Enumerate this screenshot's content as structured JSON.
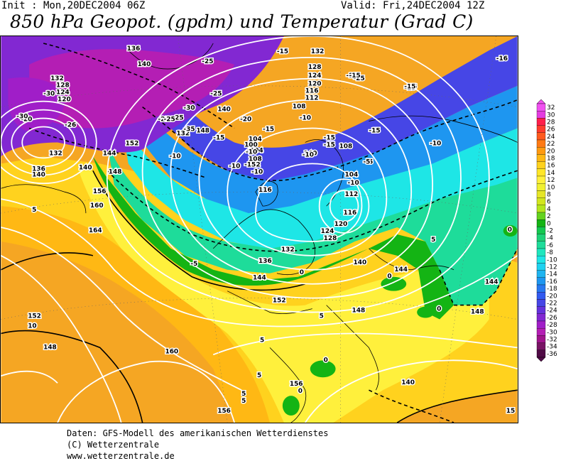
{
  "header": {
    "init": "Init : Mon,20DEC2004 06Z",
    "valid": "Valid: Fri,24DEC2004 12Z",
    "title": "850 hPa Geopot. (gpdm) und Temperatur (Grad C)"
  },
  "legend": {
    "values": [
      "32",
      "30",
      "28",
      "26",
      "24",
      "22",
      "20",
      "18",
      "16",
      "14",
      "12",
      "10",
      "8",
      "6",
      "4",
      "2",
      "0",
      "-2",
      "-4",
      "-6",
      "-8",
      "-10",
      "-12",
      "-14",
      "-16",
      "-18",
      "-20",
      "-22",
      "-24",
      "-26",
      "-28",
      "-30",
      "-32",
      "-34",
      "-36"
    ],
    "colors": [
      "#f050f0",
      "#e43ce0",
      "#ff1f4b",
      "#ff3c2d",
      "#ff5a1e",
      "#ff7a14",
      "#ff9a10",
      "#ffb814",
      "#ffd21e",
      "#ffe628",
      "#fff03c",
      "#f0f032",
      "#e6e628",
      "#d2e61e",
      "#b4e61e",
      "#64d21e",
      "#14b414",
      "#14c850",
      "#1ed278",
      "#1edc9a",
      "#1ee6be",
      "#1ee6e6",
      "#1ed2f0",
      "#1eb4f0",
      "#1e96f0",
      "#2878f0",
      "#325af0",
      "#4646e6",
      "#6432dc",
      "#8228d2",
      "#a01ec8",
      "#b41eb4",
      "#a0148c",
      "#781464",
      "#500a46"
    ]
  },
  "geopotential_labels": [
    "132",
    "128",
    "124",
    "120",
    "116",
    "112",
    "108",
    "104",
    "136",
    "140",
    "144",
    "148",
    "152",
    "156",
    "160",
    "164"
  ],
  "map_labels": {
    "geopotential": [
      {
        "t": "136"
      },
      {
        "t": "140"
      },
      {
        "t": "132"
      },
      {
        "t": "128"
      },
      {
        "t": "124"
      },
      {
        "t": "120"
      },
      {
        "t": "132"
      },
      {
        "t": "136"
      },
      {
        "t": "140"
      },
      {
        "t": "144"
      },
      {
        "t": "148"
      },
      {
        "t": "156"
      },
      {
        "t": "160"
      },
      {
        "t": "164"
      },
      {
        "t": "152"
      },
      {
        "t": "148"
      },
      {
        "t": "160"
      },
      {
        "t": "156"
      },
      {
        "t": "156"
      },
      {
        "t": "132"
      },
      {
        "t": "128"
      },
      {
        "t": "124"
      },
      {
        "t": "120"
      },
      {
        "t": "116"
      },
      {
        "t": "112"
      },
      {
        "t": "108"
      },
      {
        "t": "104"
      },
      {
        "t": "100"
      },
      {
        "t": "104"
      },
      {
        "t": "108"
      },
      {
        "t": "112"
      },
      {
        "t": "116"
      },
      {
        "t": "108"
      },
      {
        "t": "104"
      },
      {
        "t": "112"
      },
      {
        "t": "116"
      },
      {
        "t": "120"
      },
      {
        "t": "124"
      },
      {
        "t": "128"
      },
      {
        "t": "132"
      },
      {
        "t": "136"
      },
      {
        "t": "140"
      },
      {
        "t": "144"
      },
      {
        "t": "144"
      },
      {
        "t": "140"
      },
      {
        "t": "144"
      },
      {
        "t": "148"
      },
      {
        "t": "148"
      },
      {
        "t": "152"
      },
      {
        "t": "148"
      },
      {
        "t": "140"
      },
      {
        "t": "132"
      },
      {
        "t": "152"
      },
      {
        "t": "140"
      },
      {
        "t": "140"
      }
    ],
    "temperature": [
      {
        "t": "-30"
      },
      {
        "t": "-25"
      },
      {
        "t": "-25"
      },
      {
        "t": "-25"
      },
      {
        "t": "-30"
      },
      {
        "t": "-35"
      },
      {
        "t": "-25"
      },
      {
        "t": "-25"
      },
      {
        "t": "-20"
      },
      {
        "t": "-15"
      },
      {
        "t": "-20"
      },
      {
        "t": "-15"
      },
      {
        "t": "-15"
      },
      {
        "t": "-10"
      },
      {
        "t": "-15"
      },
      {
        "t": "-10"
      },
      {
        "t": "-15"
      },
      {
        "t": "-15"
      },
      {
        "t": "-15"
      },
      {
        "t": "-10"
      },
      {
        "t": "-10"
      },
      {
        "t": "-5"
      },
      {
        "t": "-10"
      },
      {
        "t": "-10"
      },
      {
        "t": "-15"
      },
      {
        "t": "-10"
      },
      {
        "t": "-15"
      },
      {
        "t": "-5"
      },
      {
        "t": "-5"
      },
      {
        "t": "0"
      },
      {
        "t": "0"
      },
      {
        "t": "5"
      },
      {
        "t": "5"
      },
      {
        "t": "5"
      },
      {
        "t": "10"
      },
      {
        "t": "5"
      },
      {
        "t": "0"
      },
      {
        "t": "5"
      },
      {
        "t": "5"
      },
      {
        "t": "0"
      },
      {
        "t": "0"
      },
      {
        "t": "5"
      },
      {
        "t": "0"
      },
      {
        "t": "15"
      },
      {
        "t": "-16"
      },
      {
        "t": "-16"
      },
      {
        "t": "-10"
      },
      {
        "t": "-15"
      },
      {
        "t": "-20"
      },
      {
        "t": "-30"
      },
      {
        "t": "-26"
      },
      {
        "t": "-25"
      }
    ]
  },
  "footer": {
    "line1": "Daten: GFS-Modell des amerikanischen Wetterdienstes",
    "line2": "(C) Wetterzentrale",
    "line3": "www.wetterzentrale.de"
  }
}
